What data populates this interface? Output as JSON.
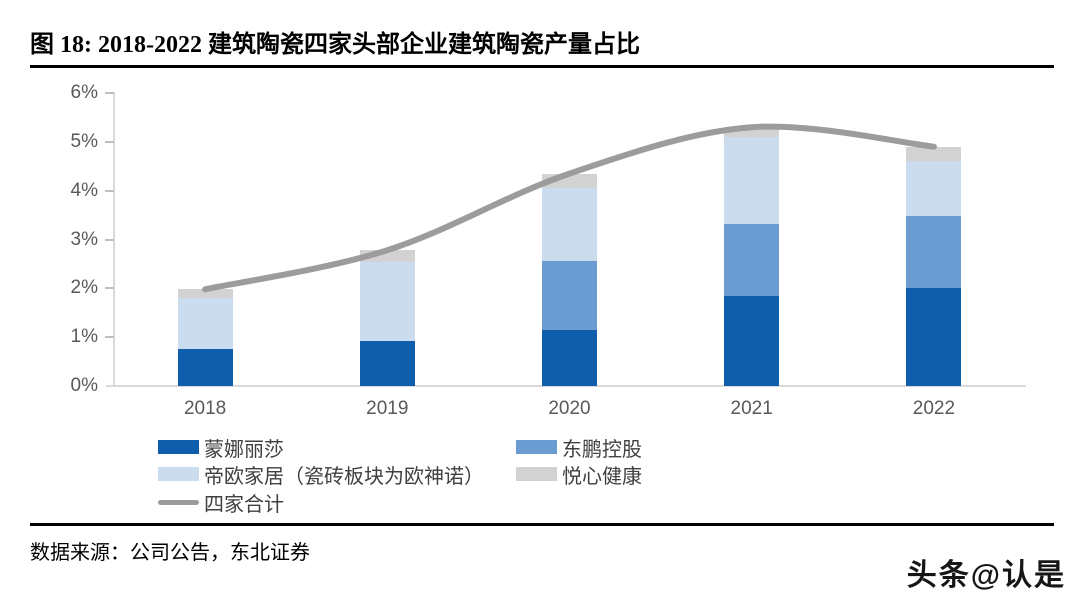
{
  "header": {
    "title": "图 18: 2018-2022 建筑陶瓷四家头部企业建筑陶瓷产量占比"
  },
  "footer": {
    "source": "数据来源：公司公告，东北证券",
    "watermark": "头条@认是"
  },
  "colors": {
    "monalisa_dark_blue": "#0e5eab",
    "dongpeng_medium_blue": "#6a9bd1",
    "dio_light_blue": "#ccdcef",
    "yuexin_gray": "#d2d2d2",
    "total_line_gray": "#9c9c9c",
    "axis_gray": "#d9d9d9",
    "label_gray": "#595959"
  },
  "chart_data": {
    "type": "stacked_bar_with_line",
    "categories": [
      "2018",
      "2019",
      "2020",
      "2021",
      "2022"
    ],
    "series": [
      {
        "name": "蒙娜丽莎",
        "type": "bar",
        "color": "#0e5eab",
        "values": [
          0.75,
          0.93,
          1.15,
          1.85,
          2.0
        ]
      },
      {
        "name": "东鹏控股",
        "type": "bar",
        "color": "#6a9bd1",
        "values": [
          0,
          0,
          1.4,
          1.47,
          1.48
        ]
      },
      {
        "name": "帝欧家居（瓷砖板块为欧神诺）",
        "type": "bar",
        "color": "#ccdcef",
        "values": [
          1.05,
          1.6,
          1.5,
          1.78,
          1.12
        ]
      },
      {
        "name": "悦心健康",
        "type": "bar",
        "color": "#d2d2d2",
        "values": [
          0.18,
          0.25,
          0.3,
          0.2,
          0.3
        ]
      },
      {
        "name": "四家合计",
        "type": "line",
        "color": "#9c9c9c",
        "values": [
          1.98,
          2.78,
          4.35,
          5.3,
          4.9
        ]
      }
    ],
    "y_axis": {
      "min": 0,
      "max": 6,
      "step": 1,
      "format": "percent",
      "tick_labels": [
        "0%",
        "1%",
        "2%",
        "3%",
        "4%",
        "5%",
        "6%"
      ]
    },
    "grid": false,
    "legend_position": "bottom-left"
  }
}
